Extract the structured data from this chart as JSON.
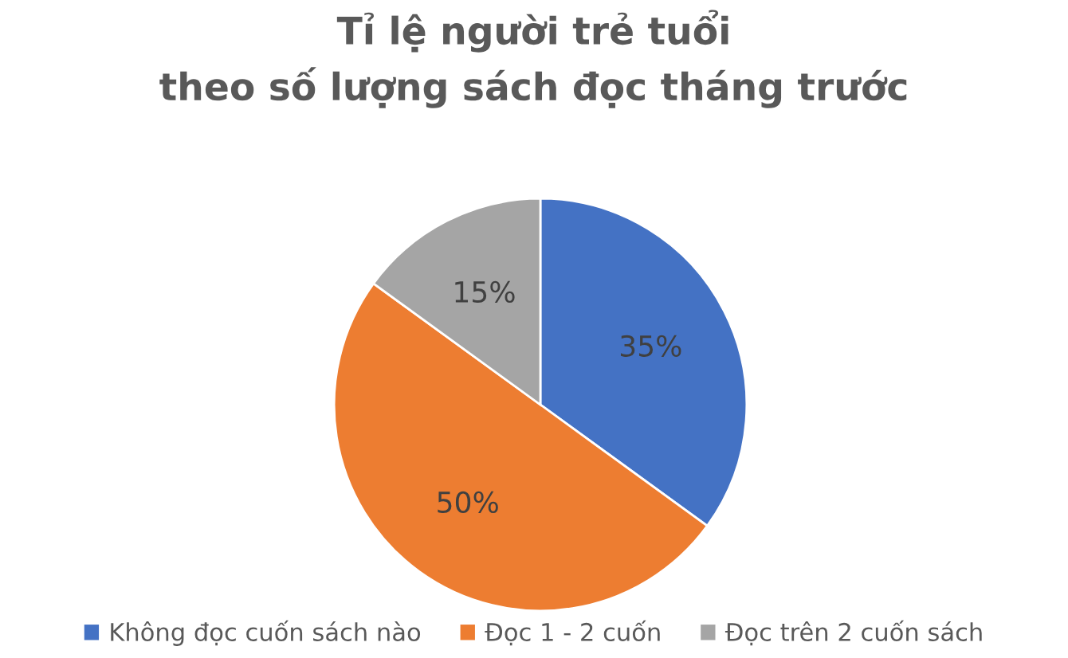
{
  "chart_data": {
    "type": "pie",
    "title": "Tỉ lệ người trẻ tuổi\ntheo số lượng sách đọc tháng trước",
    "categories": [
      "Không đọc cuốn sách nào",
      "Đọc 1 - 2 cuốn",
      "Đọc trên 2 cuốn sách"
    ],
    "values": [
      35,
      50,
      15
    ],
    "colors": [
      "#4472c4",
      "#ed7d31",
      "#a5a5a5"
    ],
    "value_labels": [
      "35%",
      "50%",
      "15%"
    ],
    "legend": "bottom"
  }
}
